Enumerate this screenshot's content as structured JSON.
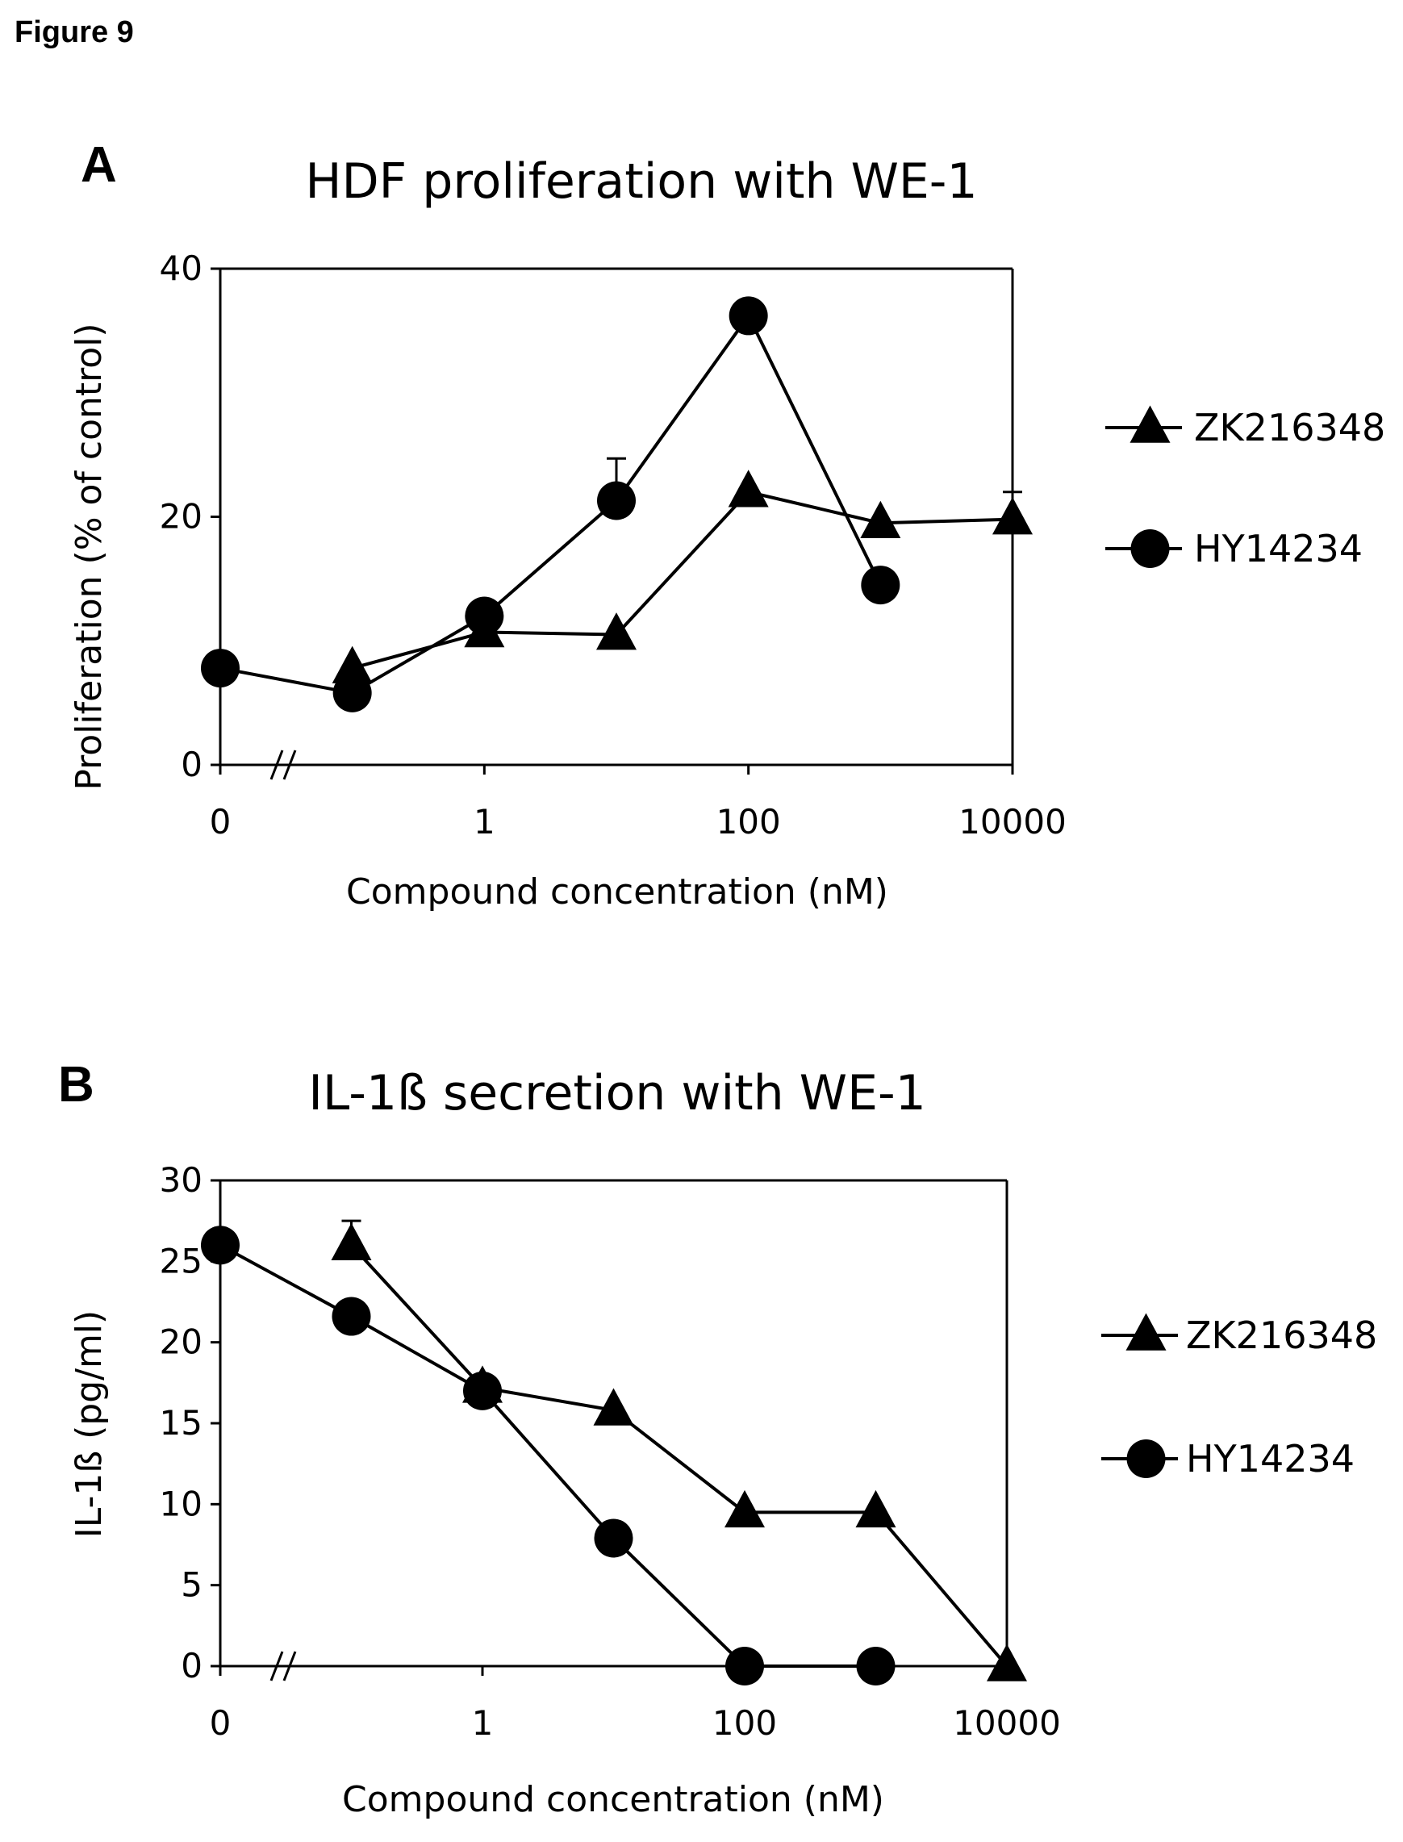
{
  "figure": {
    "title": "Figure 9"
  },
  "panels": [
    {
      "letter": "A"
    },
    {
      "letter": "B"
    }
  ],
  "chart_data": [
    {
      "type": "line",
      "title": "HDF proliferation with WE-1",
      "xlabel": "Compound concentration (nM)",
      "ylabel": "Proliferation (% of control)",
      "x_scale": "broken axis (0, then log10)",
      "x_tick_labels": [
        "0",
        "1",
        "100",
        "10000"
      ],
      "y_ticks": [
        0,
        20,
        40
      ],
      "ylim": [
        0,
        40
      ],
      "legend_position": "right",
      "grid": false,
      "series": [
        {
          "name": "ZK216348",
          "marker": "triangle",
          "points": [
            {
              "x": 0.1,
              "y": 7.8
            },
            {
              "x": 1,
              "y": 10.7
            },
            {
              "x": 10,
              "y": 10.5
            },
            {
              "x": 100,
              "y": 22.0
            },
            {
              "x": 1000,
              "y": 19.5
            },
            {
              "x": 10000,
              "y": 19.8,
              "err": 2.2
            }
          ]
        },
        {
          "name": "HY14234",
          "marker": "circle",
          "points": [
            {
              "x": 0,
              "y": 7.8
            },
            {
              "x": 0.1,
              "y": 5.8
            },
            {
              "x": 1,
              "y": 12.0
            },
            {
              "x": 10,
              "y": 21.3,
              "err": 3.4
            },
            {
              "x": 100,
              "y": 36.2
            },
            {
              "x": 1000,
              "y": 14.5
            }
          ]
        }
      ]
    },
    {
      "type": "line",
      "title": "IL-1ß secretion with WE-1",
      "xlabel": "Compound concentration (nM)",
      "ylabel": "IL-1ß (pg/ml)",
      "x_scale": "broken axis (0, then log10)",
      "x_tick_labels": [
        "0",
        "1",
        "100",
        "10000"
      ],
      "y_ticks": [
        0,
        5,
        10,
        15,
        20,
        25,
        30
      ],
      "ylim": [
        0,
        30
      ],
      "legend_position": "right",
      "grid": false,
      "series": [
        {
          "name": "ZK216348",
          "marker": "triangle",
          "points": [
            {
              "x": 0.1,
              "y": 26.0,
              "err": 1.5
            },
            {
              "x": 1,
              "y": 17.2
            },
            {
              "x": 10,
              "y": 15.8
            },
            {
              "x": 100,
              "y": 9.5
            },
            {
              "x": 1000,
              "y": 9.5
            },
            {
              "x": 10000,
              "y": 0
            }
          ]
        },
        {
          "name": "HY14234",
          "marker": "circle",
          "points": [
            {
              "x": 0,
              "y": 26.0
            },
            {
              "x": 0.1,
              "y": 21.6
            },
            {
              "x": 1,
              "y": 17.0
            },
            {
              "x": 10,
              "y": 7.9
            },
            {
              "x": 100,
              "y": 0
            },
            {
              "x": 1000,
              "y": 0
            }
          ]
        }
      ]
    }
  ]
}
